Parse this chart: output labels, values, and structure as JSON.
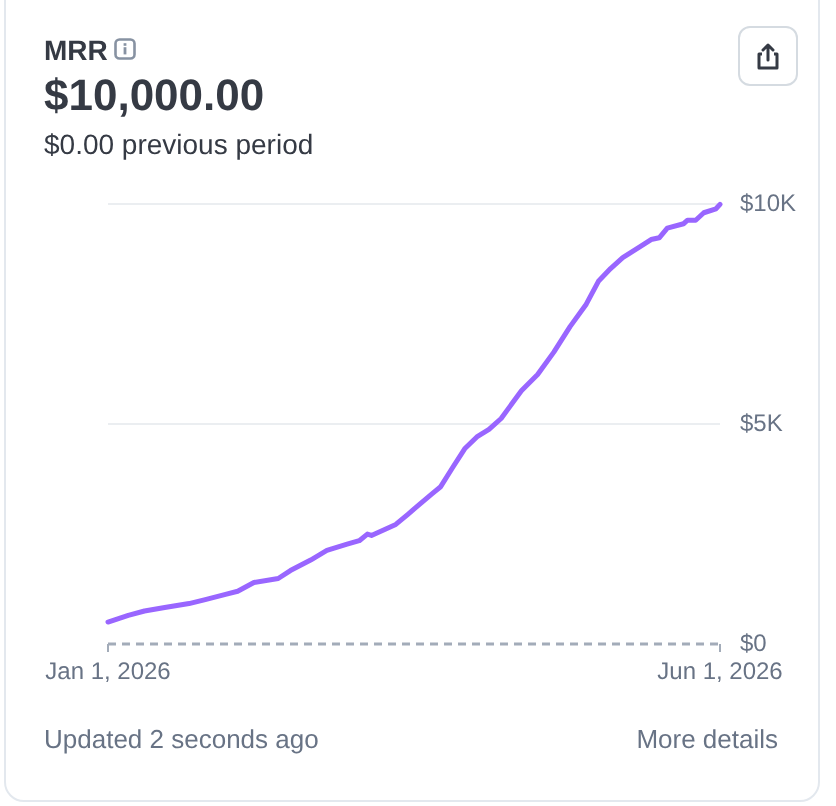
{
  "chart_data": {
    "type": "line",
    "title": "MRR",
    "subtitle": "$10,000.00",
    "annotations": [
      "$0.00 previous period",
      "Updated 2 seconds ago",
      "More details"
    ],
    "x": [
      "2026-01-01",
      "2026-01-06",
      "2026-01-10",
      "2026-01-15",
      "2026-01-21",
      "2026-01-25",
      "2026-01-30",
      "2026-02-02",
      "2026-02-06",
      "2026-02-12",
      "2026-02-15",
      "2026-02-20",
      "2026-02-24",
      "2026-03-01",
      "2026-03-04",
      "2026-03-06",
      "2026-03-07",
      "2026-03-13",
      "2026-03-16",
      "2026-03-19",
      "2026-03-22",
      "2026-03-24",
      "2026-03-27",
      "2026-03-30",
      "2026-04-02",
      "2026-04-05",
      "2026-04-08",
      "2026-04-13",
      "2026-04-17",
      "2026-04-21",
      "2026-04-25",
      "2026-04-29",
      "2026-05-02",
      "2026-05-05",
      "2026-05-08",
      "2026-05-12",
      "2026-05-15",
      "2026-05-17",
      "2026-05-19",
      "2026-05-23",
      "2026-05-24",
      "2026-05-26",
      "2026-05-28",
      "2026-05-31",
      "2026-06-01"
    ],
    "series": [
      {
        "color": "#9966ff",
        "values": [
          500,
          650,
          750,
          830,
          920,
          1010,
          1130,
          1200,
          1400,
          1490,
          1670,
          1910,
          2130,
          2270,
          2350,
          2500,
          2470,
          2720,
          2950,
          3190,
          3420,
          3570,
          4010,
          4440,
          4710,
          4880,
          5130,
          5760,
          6130,
          6640,
          7220,
          7730,
          8250,
          8540,
          8790,
          9020,
          9200,
          9240,
          9460,
          9560,
          9640,
          9640,
          9810,
          9900,
          10000
        ]
      }
    ],
    "xlim": [
      "2026-01-01",
      "2026-06-01"
    ],
    "xticks": [
      {
        "value": "2026-01-01",
        "label": "Jan 1, 2026"
      },
      {
        "value": "2026-06-01",
        "label": "Jun 1, 2026"
      }
    ],
    "ylim": [
      0,
      10000
    ],
    "yticks": [
      {
        "value": 0,
        "label": "$0"
      },
      {
        "value": 5000,
        "label": "$5K"
      },
      {
        "value": 10000,
        "label": "$10K"
      }
    ],
    "grid": "y",
    "marker": "none",
    "line_style": "solid"
  }
}
